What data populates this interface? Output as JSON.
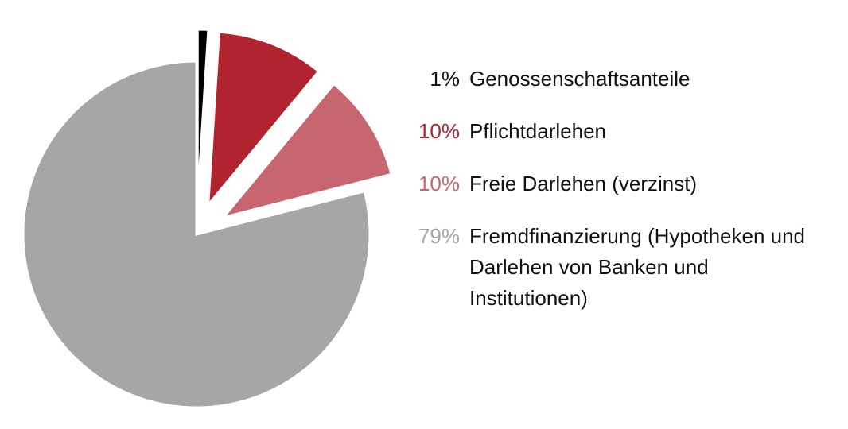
{
  "chart_data": {
    "type": "pie",
    "categories": [
      "Genossenschaftsanteile",
      "Pflichtdarlehen",
      "Freie Darlehen (verzinst)",
      "Fremdfinanzierung (Hypotheken und Darlehen von Banken und Institutionen)"
    ],
    "values": [
      1,
      10,
      10,
      79
    ],
    "value_labels": [
      "1%",
      "10%",
      "10%",
      "79%"
    ],
    "colors": [
      "#000000",
      "#b0232f",
      "#c8666f",
      "#a6a6a6"
    ]
  }
}
